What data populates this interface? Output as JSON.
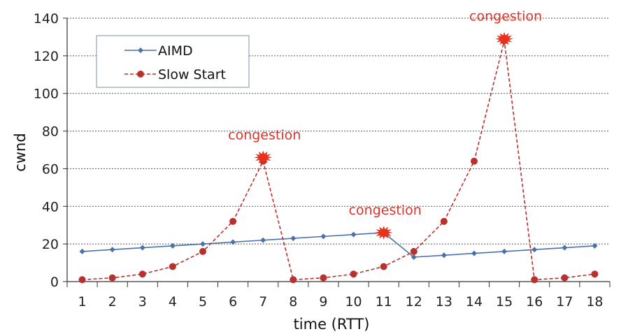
{
  "chart_data": {
    "type": "line",
    "xlabel": "time (RTT)",
    "ylabel": "cwnd",
    "x": [
      1,
      2,
      3,
      4,
      5,
      6,
      7,
      8,
      9,
      10,
      11,
      12,
      13,
      14,
      15,
      16,
      17,
      18
    ],
    "ylim": [
      0,
      140
    ],
    "yticks": [
      0,
      20,
      40,
      60,
      80,
      100,
      120,
      140
    ],
    "grid": "horizontal dotted",
    "legend": "top-left",
    "series": [
      {
        "name": "AIMD",
        "color": "#4a72a8",
        "marker": "diamond",
        "line": "solid",
        "values": [
          16,
          17,
          18,
          19,
          20,
          21,
          22,
          23,
          24,
          25,
          26,
          13,
          14,
          15,
          16,
          17,
          18,
          19
        ]
      },
      {
        "name": "Slow Start",
        "color": "#b8312f",
        "marker": "circle",
        "line": "dashed",
        "values": [
          1,
          2,
          4,
          8,
          16,
          32,
          64,
          1,
          2,
          4,
          8,
          16,
          32,
          64,
          128,
          1,
          2,
          4
        ]
      }
    ],
    "annotations": [
      {
        "text": "congestion",
        "x": 7,
        "y": 66,
        "color": "#d9352a"
      },
      {
        "text": "congestion",
        "x": 11,
        "y": 26,
        "color": "#d9352a"
      },
      {
        "text": "congestion",
        "x": 15,
        "y": 129,
        "color": "#d9352a"
      }
    ]
  }
}
